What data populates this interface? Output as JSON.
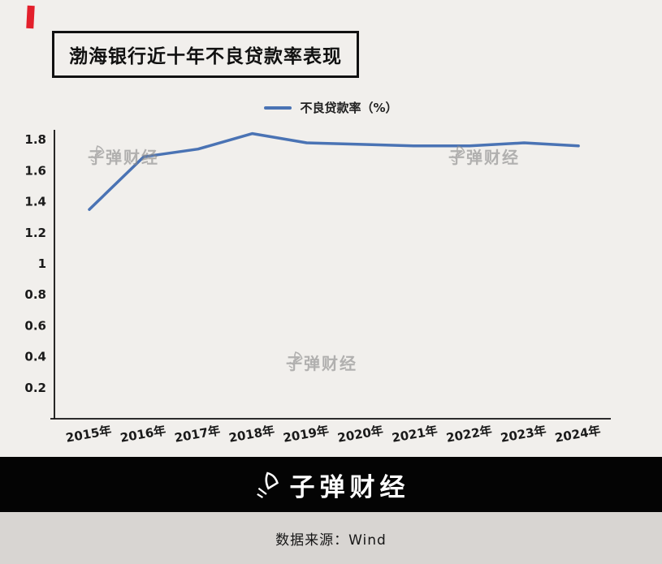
{
  "header": {
    "title": "渤海银行近十年不良贷款率表现"
  },
  "legend": {
    "label": "不良贷款率（%）"
  },
  "chart_data": {
    "type": "line",
    "title": "渤海银行近十年不良贷款率表现",
    "categories": [
      "2015年",
      "2016年",
      "2017年",
      "2018年",
      "2019年",
      "2020年",
      "2021年",
      "2022年",
      "2023年",
      "2024年"
    ],
    "series": [
      {
        "name": "不良贷款率（%）",
        "values": [
          1.35,
          1.69,
          1.74,
          1.84,
          1.78,
          1.77,
          1.76,
          1.76,
          1.78,
          1.76
        ]
      }
    ],
    "xlabel": "",
    "ylabel": "",
    "ylim": [
      0,
      1.9
    ],
    "y_ticks": [
      0.2,
      0.4,
      0.6,
      0.8,
      1,
      1.2,
      1.4,
      1.6,
      1.8
    ],
    "grid": false,
    "legend_position": "top",
    "line_color": "#4a73b4"
  },
  "watermark": {
    "text": "子弹财经"
  },
  "footer": {
    "brand": "子弹财经",
    "source": "数据来源：Wind"
  },
  "colors": {
    "accent_red": "#e31f2b",
    "line_blue": "#4a73b4",
    "background": "#f1efec",
    "brand_bar": "#040404",
    "source_bar": "#d8d5d2"
  }
}
